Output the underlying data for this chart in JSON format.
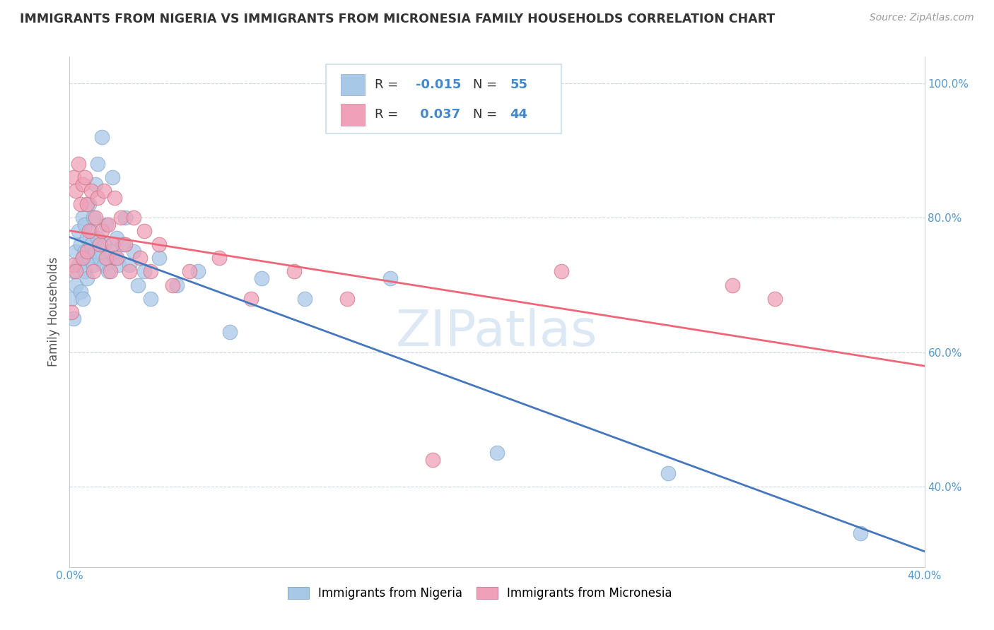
{
  "title": "IMMIGRANTS FROM NIGERIA VS IMMIGRANTS FROM MICRONESIA FAMILY HOUSEHOLDS CORRELATION CHART",
  "source": "Source: ZipAtlas.com",
  "ylabel": "Family Households",
  "xlim": [
    0.0,
    0.4
  ],
  "ylim": [
    0.28,
    1.04
  ],
  "color_nigeria": "#a8c8e8",
  "color_micronesia": "#f0a0b8",
  "line_color_nigeria": "#4477bb",
  "line_color_micronesia": "#ee6677",
  "watermark": "ZIPatlas",
  "nigeria_x": [
    0.001,
    0.002,
    0.002,
    0.003,
    0.003,
    0.004,
    0.004,
    0.005,
    0.005,
    0.006,
    0.006,
    0.006,
    0.007,
    0.007,
    0.007,
    0.008,
    0.008,
    0.009,
    0.009,
    0.01,
    0.01,
    0.011,
    0.011,
    0.012,
    0.012,
    0.013,
    0.013,
    0.014,
    0.015,
    0.016,
    0.016,
    0.017,
    0.018,
    0.019,
    0.02,
    0.021,
    0.022,
    0.023,
    0.025,
    0.026,
    0.028,
    0.03,
    0.032,
    0.035,
    0.038,
    0.042,
    0.05,
    0.06,
    0.075,
    0.09,
    0.11,
    0.15,
    0.2,
    0.28,
    0.37
  ],
  "nigeria_y": [
    0.68,
    0.72,
    0.65,
    0.75,
    0.7,
    0.78,
    0.73,
    0.76,
    0.69,
    0.8,
    0.74,
    0.68,
    0.79,
    0.72,
    0.75,
    0.77,
    0.71,
    0.82,
    0.74,
    0.76,
    0.78,
    0.73,
    0.8,
    0.75,
    0.85,
    0.77,
    0.88,
    0.74,
    0.92,
    0.76,
    0.73,
    0.79,
    0.72,
    0.75,
    0.86,
    0.74,
    0.77,
    0.73,
    0.76,
    0.8,
    0.73,
    0.75,
    0.7,
    0.72,
    0.68,
    0.74,
    0.7,
    0.72,
    0.63,
    0.71,
    0.68,
    0.71,
    0.45,
    0.42,
    0.33
  ],
  "micronesia_x": [
    0.001,
    0.002,
    0.002,
    0.003,
    0.003,
    0.004,
    0.005,
    0.006,
    0.006,
    0.007,
    0.008,
    0.008,
    0.009,
    0.01,
    0.011,
    0.012,
    0.013,
    0.014,
    0.015,
    0.016,
    0.017,
    0.018,
    0.019,
    0.02,
    0.021,
    0.022,
    0.024,
    0.026,
    0.028,
    0.03,
    0.033,
    0.035,
    0.038,
    0.042,
    0.048,
    0.056,
    0.07,
    0.085,
    0.105,
    0.13,
    0.17,
    0.23,
    0.31,
    0.33
  ],
  "micronesia_y": [
    0.66,
    0.86,
    0.73,
    0.84,
    0.72,
    0.88,
    0.82,
    0.85,
    0.74,
    0.86,
    0.82,
    0.75,
    0.78,
    0.84,
    0.72,
    0.8,
    0.83,
    0.76,
    0.78,
    0.84,
    0.74,
    0.79,
    0.72,
    0.76,
    0.83,
    0.74,
    0.8,
    0.76,
    0.72,
    0.8,
    0.74,
    0.78,
    0.72,
    0.76,
    0.7,
    0.72,
    0.74,
    0.68,
    0.72,
    0.68,
    0.44,
    0.72,
    0.7,
    0.68
  ]
}
